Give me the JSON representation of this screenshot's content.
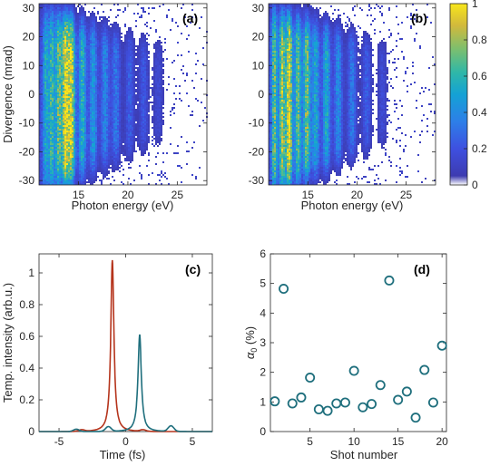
{
  "chart_data": [
    {
      "type": "heatmap",
      "panel_label": "(a)",
      "xlabel": "Photon energy (eV)",
      "ylabel": "Divergence (mrad)",
      "xlim": [
        11,
        28
      ],
      "ylim": [
        -31.5,
        31.5
      ],
      "xticks": [
        15,
        20,
        25
      ],
      "yticks": [
        -30,
        -20,
        -10,
        0,
        10,
        20,
        30
      ],
      "harmonic_bands_eV": [
        {
          "energy": 11.6,
          "intensity": 0.35
        },
        {
          "energy": 12.2,
          "intensity": 0.45
        },
        {
          "energy": 12.9,
          "intensity": 0.55
        },
        {
          "energy": 13.6,
          "intensity": 0.8
        },
        {
          "energy": 14.2,
          "intensity": 0.75
        },
        {
          "energy": 15.3,
          "intensity": 0.45
        },
        {
          "energy": 16.4,
          "intensity": 0.35
        },
        {
          "energy": 17.6,
          "intensity": 0.3
        },
        {
          "energy": 18.7,
          "intensity": 0.28
        },
        {
          "energy": 20.1,
          "intensity": 0.22
        },
        {
          "energy": 21.5,
          "intensity": 0.2
        },
        {
          "energy": 23.0,
          "intensity": 0.15
        }
      ]
    },
    {
      "type": "heatmap",
      "panel_label": "(b)",
      "xlabel": "Photon energy (eV)",
      "ylabel": "",
      "xlim": [
        11,
        28
      ],
      "ylim": [
        -31.5,
        31.5
      ],
      "xticks": [
        15,
        20,
        25
      ],
      "yticks": [
        -30,
        -20,
        -10,
        0,
        10,
        20,
        30
      ],
      "harmonic_bands_eV": [
        {
          "energy": 11.5,
          "intensity": 0.55
        },
        {
          "energy": 12.3,
          "intensity": 0.65
        },
        {
          "energy": 13.0,
          "intensity": 0.8
        },
        {
          "energy": 13.9,
          "intensity": 0.55
        },
        {
          "energy": 14.8,
          "intensity": 0.6
        },
        {
          "energy": 15.7,
          "intensity": 0.4
        },
        {
          "energy": 16.8,
          "intensity": 0.45
        },
        {
          "energy": 18.0,
          "intensity": 0.35
        },
        {
          "energy": 19.4,
          "intensity": 0.3
        },
        {
          "energy": 20.9,
          "intensity": 0.22
        },
        {
          "energy": 22.5,
          "intensity": 0.15
        }
      ],
      "colorbar": {
        "ticks": [
          0,
          0.2,
          0.4,
          0.6,
          0.8,
          1
        ],
        "range": [
          0,
          1
        ]
      }
    },
    {
      "type": "line",
      "panel_label": "(c)",
      "xlabel": "Time (fs)",
      "ylabel": "Temp. intensity (arb.u.)",
      "xlim": [
        -6.5,
        6.5
      ],
      "ylim": [
        0,
        1.12
      ],
      "xticks": [
        -5,
        0,
        5
      ],
      "yticks": [
        0,
        0.2,
        0.4,
        0.6,
        0.8,
        1
      ],
      "series": [
        {
          "color": "#b5341c",
          "peak_time": -1.0,
          "peak": 1.08,
          "width_fs": 0.28,
          "extra_peaks": [
            {
              "time": -3.3,
              "height": 0.01
            },
            {
              "time": 1.3,
              "height": 0.01
            }
          ]
        },
        {
          "color": "#1f6f7d",
          "peak_time": 1.05,
          "peak": 0.61,
          "width_fs": 0.3,
          "extra_peaks": [
            {
              "time": -1.3,
              "height": 0.03
            },
            {
              "time": 3.4,
              "height": 0.035
            },
            {
              "time": -3.7,
              "height": 0.015
            }
          ]
        }
      ]
    },
    {
      "type": "scatter",
      "panel_label": "(d)",
      "xlabel": "Shot number",
      "ylabel": "α",
      "ylabel_subscript": "0",
      "ylabel_suffix": " (%)",
      "xlim": [
        0.5,
        20.5
      ],
      "ylim": [
        0,
        6
      ],
      "xticks": [
        5,
        10,
        15,
        20
      ],
      "yticks": [
        0,
        1,
        2,
        3,
        4,
        5,
        6
      ],
      "yticklabels": [
        "0",
        "1",
        "2",
        "3",
        "4",
        "5",
        "6"
      ],
      "color": "#1f6f7d",
      "x": [
        1,
        2,
        3,
        4,
        5,
        6,
        7,
        8,
        9,
        10,
        11,
        12,
        13,
        14,
        15,
        16,
        17,
        18,
        19,
        20
      ],
      "y": [
        1.02,
        4.82,
        0.95,
        1.15,
        1.82,
        0.75,
        0.7,
        0.95,
        0.98,
        2.05,
        0.82,
        0.93,
        1.57,
        5.1,
        1.07,
        1.35,
        0.47,
        2.08,
        0.98,
        2.9
      ]
    }
  ]
}
